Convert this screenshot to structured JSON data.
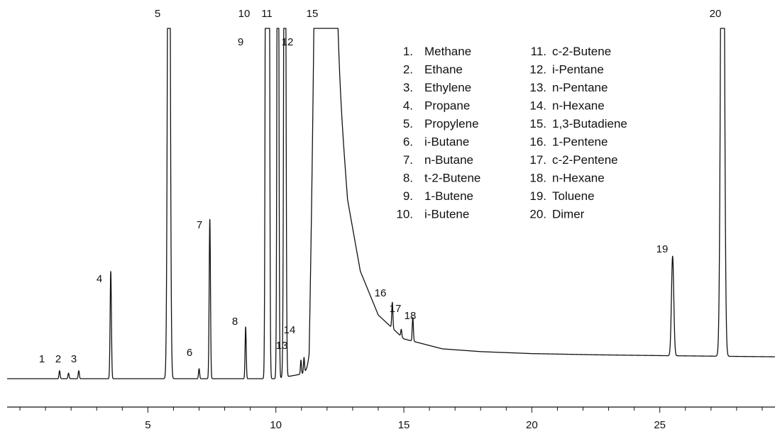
{
  "chart_data": {
    "type": "line",
    "title": "",
    "xlabel": "",
    "ylabel": "",
    "xlim": [
      -0.5,
      29.5
    ],
    "ylim": [
      -4,
      100
    ],
    "x_ticks": [
      5,
      10,
      15,
      20,
      25
    ],
    "x_tick_labels": [
      "5",
      "10",
      "15",
      "20",
      "25"
    ],
    "grid": false,
    "legend": "top-center",
    "line_color": "#111111",
    "peaks": [
      {
        "label": "1",
        "rt": 1.55,
        "height": 2.0,
        "width": 0.022
      },
      {
        "label": "2",
        "rt": 1.9,
        "height": 1.4,
        "width": 0.022
      },
      {
        "label": "3",
        "rt": 2.3,
        "height": 2.0,
        "width": 0.022
      },
      {
        "label": "4",
        "rt": 3.55,
        "height": 27.0,
        "width": 0.025
      },
      {
        "label": "5",
        "rt": 5.82,
        "height": 200,
        "width": 0.045
      },
      {
        "label": "6",
        "rt": 7.0,
        "height": 2.5,
        "width": 0.022
      },
      {
        "label": "7",
        "rt": 7.42,
        "height": 40.0,
        "width": 0.025
      },
      {
        "label": "8",
        "rt": 8.82,
        "height": 13.0,
        "width": 0.022
      },
      {
        "label": "9",
        "rt": 9.62,
        "height": 200,
        "width": 0.03
      },
      {
        "label": "10",
        "rt": 9.72,
        "height": 200,
        "width": 0.03
      },
      {
        "label": "11",
        "rt": 10.08,
        "height": 200,
        "width": 0.03
      },
      {
        "label": "12",
        "rt": 10.35,
        "height": 200,
        "width": 0.035
      },
      {
        "label": "13",
        "rt": 10.98,
        "height": 3.5,
        "width": 0.02
      },
      {
        "label": "14",
        "rt": 11.1,
        "height": 3.8,
        "width": 0.02
      },
      {
        "label": "15",
        "rt": 11.9,
        "height": 200,
        "width": 0.22
      },
      {
        "label": "16",
        "rt": 14.55,
        "height": 6.5,
        "width": 0.022
      },
      {
        "label": "17",
        "rt": 14.9,
        "height": 1.8,
        "width": 0.02
      },
      {
        "label": "18",
        "rt": 15.35,
        "height": 6.0,
        "width": 0.022
      },
      {
        "label": "19",
        "rt": 25.5,
        "height": 25.0,
        "width": 0.045
      },
      {
        "label": "20",
        "rt": 27.45,
        "height": 200,
        "width": 0.06
      }
    ],
    "baseline": [
      {
        "x": -0.5,
        "y": 0
      },
      {
        "x": 10.0,
        "y": 0
      },
      {
        "x": 11.3,
        "y": 1.5
      },
      {
        "x": 11.6,
        "y": 88
      },
      {
        "x": 12.3,
        "y": 88
      },
      {
        "x": 12.8,
        "y": 45
      },
      {
        "x": 13.3,
        "y": 27
      },
      {
        "x": 14.0,
        "y": 16
      },
      {
        "x": 15.0,
        "y": 10
      },
      {
        "x": 16.5,
        "y": 7.5
      },
      {
        "x": 18.0,
        "y": 6.8
      },
      {
        "x": 20.0,
        "y": 6.3
      },
      {
        "x": 22.5,
        "y": 6.0
      },
      {
        "x": 25.0,
        "y": 5.8
      },
      {
        "x": 28.0,
        "y": 5.6
      },
      {
        "x": 29.5,
        "y": 5.5
      }
    ],
    "clip_top": 88,
    "legend_columns": [
      [
        "1.",
        "Methane",
        "2.",
        "Ethane",
        "3.",
        "Ethylene",
        "4.",
        "Propane",
        "5.",
        "Propylene",
        "6.",
        "i-Butane",
        "7.",
        "n-Butane",
        "8.",
        "t-2-Butene",
        "9.",
        "1-Butene",
        "10.",
        "i-Butene"
      ],
      [
        "11.",
        "c-2-Butene",
        "12.",
        "i-Pentane",
        "13.",
        "n-Pentane",
        "14.",
        "n-Hexane",
        "15.",
        "1,3-Butadiene",
        "16.",
        "1-Pentene",
        "17.",
        "c-2-Pentene",
        "18.",
        "n-Hexane",
        "19.",
        "Toluene",
        "20.",
        "Dimer"
      ]
    ]
  }
}
